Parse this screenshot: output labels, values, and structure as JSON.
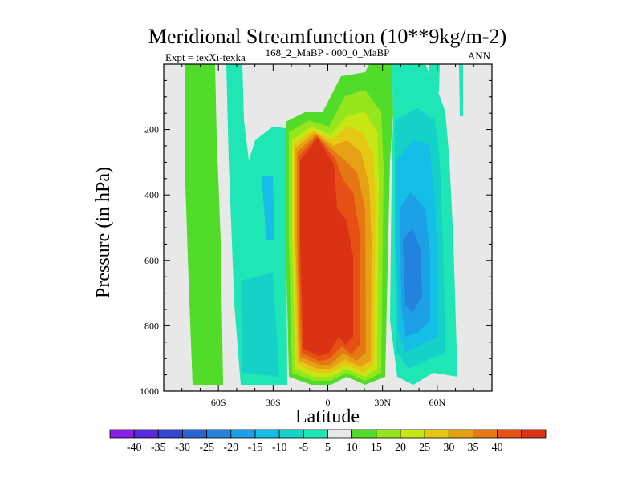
{
  "chart_data": {
    "type": "contour",
    "title": "Meridional Streamfunction (10**9kg/m-2)",
    "subtitle_left": "Expt = texXi-texka",
    "subtitle_center": "168_2_MaBP - 000_0_MaBP",
    "subtitle_right": "ANN",
    "xlabel": "Latitude",
    "ylabel": "Pressure (in hPa)",
    "xlim": [
      -90,
      90
    ],
    "ylim": [
      1000,
      0
    ],
    "x_ticks": [
      {
        "value": -60,
        "label": "60S"
      },
      {
        "value": -30,
        "label": "30S"
      },
      {
        "value": 0,
        "label": "0"
      },
      {
        "value": 30,
        "label": "30N"
      },
      {
        "value": 60,
        "label": "60N"
      }
    ],
    "y_ticks": [
      {
        "value": 200,
        "label": "200"
      },
      {
        "value": 400,
        "label": "400"
      },
      {
        "value": 600,
        "label": "600"
      },
      {
        "value": 800,
        "label": "800"
      },
      {
        "value": 1000,
        "label": "1000"
      }
    ],
    "colorbar": {
      "levels": [
        "-40",
        "-35",
        "-30",
        "-25",
        "-20",
        "-15",
        "-10",
        "-5",
        "5",
        "10",
        "15",
        "20",
        "25",
        "30",
        "35",
        "40"
      ],
      "colors": [
        "#8a1ee6",
        "#5a28dc",
        "#3246d2",
        "#2864d2",
        "#2382dc",
        "#1ea0e6",
        "#14bee6",
        "#14d2c8",
        "#1ee6b4",
        "#e8e8e8",
        "#50dc28",
        "#96e61e",
        "#c8e614",
        "#e6c814",
        "#e6a014",
        "#e67814",
        "#e65014",
        "#dc3214"
      ]
    },
    "features": [
      {
        "name": "tropical-positive-cell",
        "lat_range": [
          -17,
          30
        ],
        "p_range": [
          50,
          980
        ],
        "max_value": 40
      },
      {
        "name": "northern-negative-cell",
        "lat_range": [
          30,
          57
        ],
        "p_range": [
          60,
          960
        ],
        "min_value": -20
      },
      {
        "name": "southern-negative-cell",
        "lat_range": [
          -38,
          -22
        ],
        "p_range": [
          200,
          980
        ],
        "min_value": -10
      },
      {
        "name": "high-latitude-south-positive",
        "lat_range": [
          -78,
          -60
        ],
        "p_range": [
          0,
          960
        ],
        "max_value": 10
      }
    ]
  }
}
